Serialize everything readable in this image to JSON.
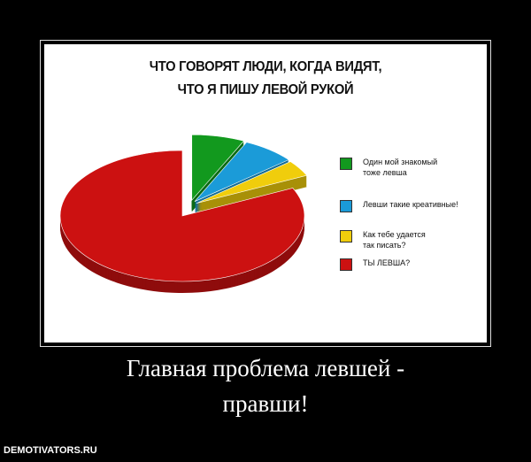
{
  "chart_data": {
    "type": "pie",
    "title": "ЧТО ГОВОРЯТ ЛЮДИ, КОГДА ВИДЯТ,\nЧТО Я ПИШУ ЛЕВОЙ РУКОЙ",
    "labels": [
      "Один мой знакомый\nтоже левша",
      "Левши такие креативные!",
      "Как тебе удается\nтак писать?",
      "ТЫ ЛЕВША?"
    ],
    "values": [
      7,
      7,
      4,
      82
    ],
    "colors": [
      "#12991e",
      "#1b9bd8",
      "#f0cd0c",
      "#cc1111"
    ],
    "legend": "right"
  },
  "caption": "Главная проблема левшей -\nправши!",
  "watermark": "DEMOTIVATORS.RU"
}
